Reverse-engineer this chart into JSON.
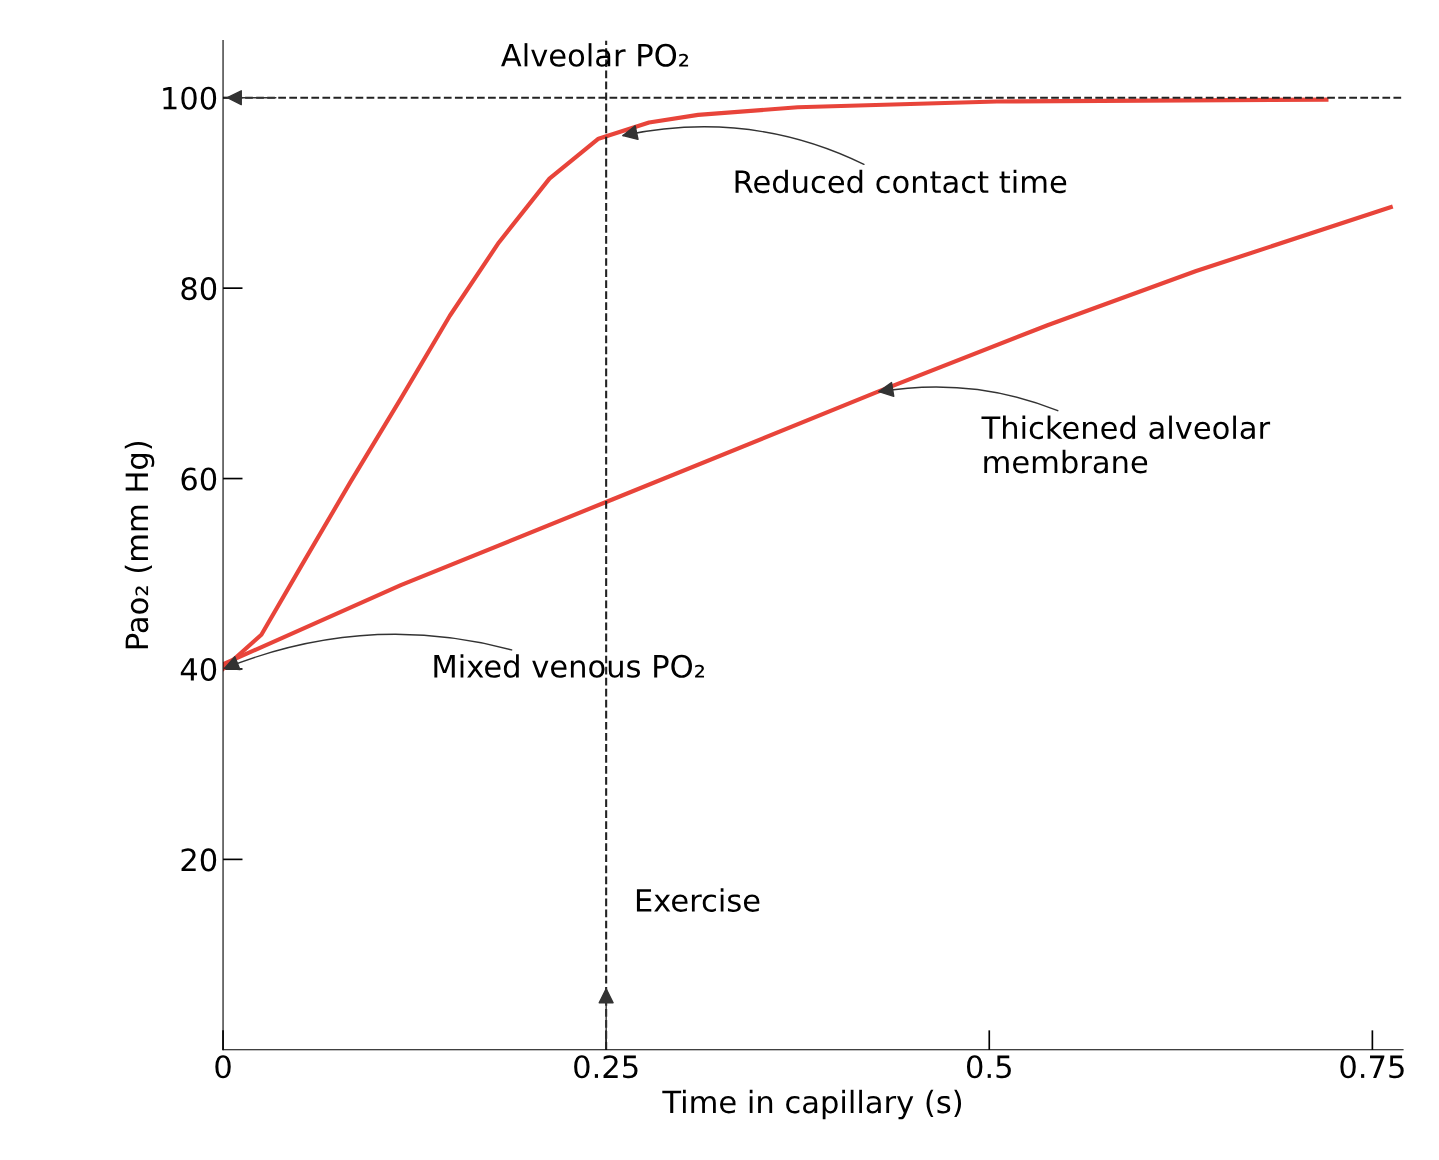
{
  "chart_data": {
    "type": "line",
    "xlabel": "Time in capillary (s)",
    "ylabel": "Pao₂ (mm Hg)",
    "series": [
      {
        "color": "#e8443a",
        "x": [
          0,
          0.025,
          0.051,
          0.083,
          0.116,
          0.148,
          0.18,
          0.213,
          0.245,
          0.278,
          0.31,
          0.375,
          0.505,
          0.72
        ],
        "values": [
          40,
          43.6,
          50.8,
          59.6,
          68.4,
          77.1,
          84.8,
          91.5,
          95.7,
          97.4,
          98.2,
          99,
          99.6,
          99.8
        ]
      },
      {
        "color": "#e8443a",
        "x": [
          0,
          0.116,
          0.254,
          0.427,
          0.538,
          0.635,
          0.762
        ],
        "values": [
          40.5,
          48.8,
          57.8,
          69.1,
          76.1,
          81.8,
          88.5
        ]
      }
    ],
    "xlim": [
      0,
      0.77
    ],
    "ylim": [
      0,
      106
    ],
    "xticks": [
      0,
      0.25,
      0.5,
      0.75
    ],
    "yticks": [
      20,
      40,
      60,
      80,
      100
    ],
    "ref_lines": [
      {
        "axis": "y",
        "value": 100,
        "label": "Alveolar PO₂",
        "color": "#222222",
        "line_style": "dashed"
      },
      {
        "axis": "x",
        "value": 0.25,
        "label": "Exercise",
        "color": "#222222",
        "line_style": "dashed"
      }
    ],
    "annotations": [
      {
        "text": "Reduced contact time",
        "x": 0.26,
        "y": 96
      },
      {
        "text": "Thickened alveolar membrane",
        "x": 0.427,
        "y": 69.1
      },
      {
        "text": "Mixed venous PO₂",
        "x": 0,
        "y": 40
      }
    ],
    "grid": false,
    "legend": false,
    "marker": "none",
    "line_style": "solid"
  }
}
